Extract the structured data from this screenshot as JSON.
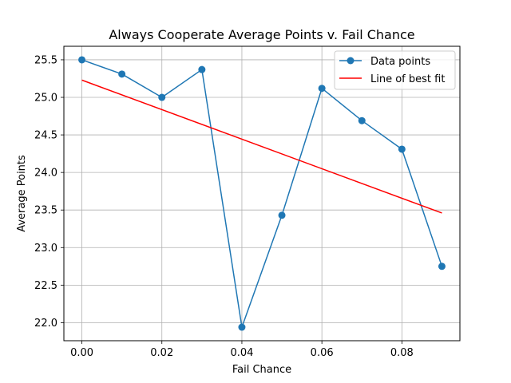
{
  "chart_data": {
    "type": "line",
    "title": "Always Cooperate Average Points v. Fail Chance",
    "xlabel": "Fail Chance",
    "ylabel": "Average Points",
    "x": [
      0.0,
      0.01,
      0.02,
      0.03,
      0.04,
      0.05,
      0.06,
      0.07,
      0.08,
      0.09
    ],
    "series": [
      {
        "name": "Data points",
        "color": "#1f77b4",
        "marker": "circle",
        "values": [
          25.5,
          25.31,
          25.0,
          25.37,
          21.94,
          23.43,
          25.12,
          24.69,
          24.31,
          22.75
        ]
      },
      {
        "name": "Line of best fit",
        "color": "#ff0000",
        "marker": "none",
        "x": [
          0.0,
          0.09
        ],
        "values": [
          25.23,
          23.46
        ]
      }
    ],
    "xlim": [
      -0.0045,
      0.0945
    ],
    "ylim": [
      21.76,
      25.68
    ],
    "xticks": [
      "0.00",
      "0.02",
      "0.04",
      "0.06",
      "0.08"
    ],
    "xtick_values": [
      0.0,
      0.02,
      0.04,
      0.06,
      0.08
    ],
    "yticks": [
      "22.0",
      "22.5",
      "23.0",
      "23.5",
      "24.0",
      "24.5",
      "25.0",
      "25.5"
    ],
    "ytick_values": [
      22.0,
      22.5,
      23.0,
      23.5,
      24.0,
      24.5,
      25.0,
      25.5
    ],
    "grid": true,
    "legend_position": "top-right"
  }
}
